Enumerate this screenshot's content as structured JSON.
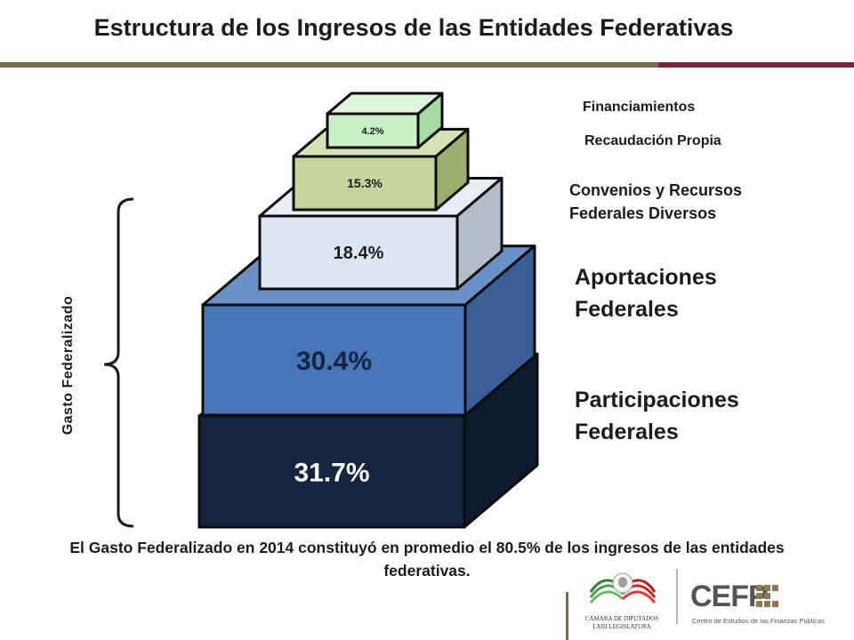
{
  "title": "Estructura de los Ingresos de las Entidades Federativas",
  "colors": {
    "olive_rule": "#786d4f",
    "maroon_rule": "#7f2538"
  },
  "chart_data": {
    "type": "bar",
    "layout": "stacked pyramid of 3D blocks",
    "categories": [
      "Participaciones Federales",
      "Aportaciones Federales",
      "Convenios y Recursos Federales Diversos",
      "Recaudación Propia",
      "Financiamientos"
    ],
    "values": [
      31.7,
      30.4,
      18.4,
      15.3,
      4.2
    ],
    "value_labels": [
      "31.7%",
      "30.4%",
      "18.4%",
      "15.3%",
      "4.2%"
    ],
    "colors": [
      "#13253f",
      "#4874b8",
      "#dce6f2",
      "#c4d59d",
      "#c9f0c6"
    ],
    "bracket_label": "Gasto Federalizado"
  },
  "labels": {
    "financiamientos": "Financiamientos",
    "recaudacion": "Recaudación Propia",
    "convenios_1": "Convenios y Recursos",
    "convenios_2": "Federales Diversos",
    "aportaciones_1": "Aportaciones",
    "aportaciones_2": "Federales",
    "participaciones_1": "Participaciones",
    "participaciones_2": "Federales"
  },
  "footnote": "El Gasto Federalizado en 2014 constituyó en promedio el 80.5% de los ingresos de las entidades federativas.",
  "logos": {
    "camara_text_1": "CÁMARA DE DIPUTADOS",
    "camara_text_2": "LXIII LEGISLATURA",
    "cefp_word": "CEFP",
    "cefp_sub": "Centro de Estudios de las Finanzas Públicas"
  }
}
